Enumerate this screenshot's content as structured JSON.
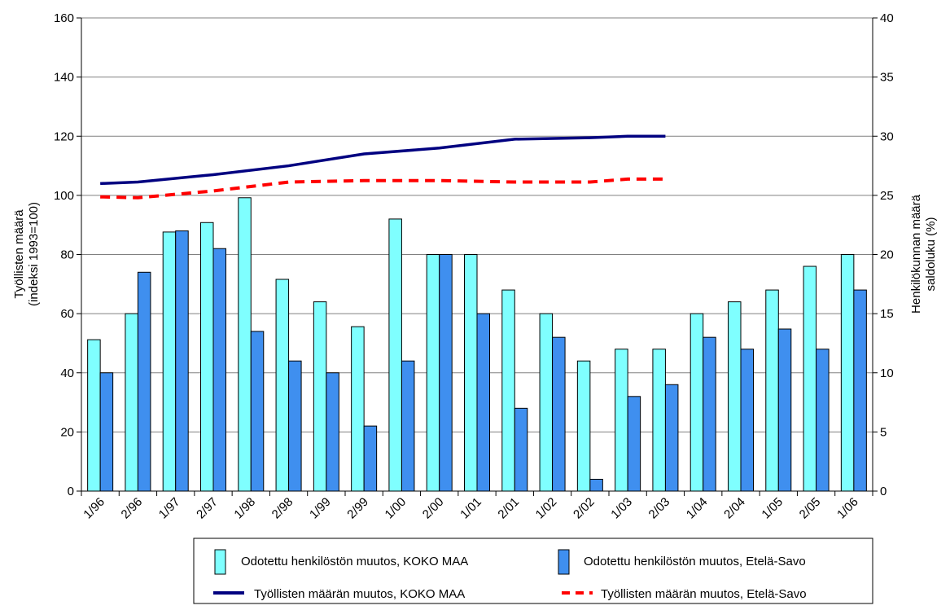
{
  "chart_data": {
    "type": "bar",
    "title": "",
    "categories": [
      "1/96",
      "2/96",
      "1/97",
      "2/97",
      "1/98",
      "2/98",
      "1/99",
      "2/99",
      "1/00",
      "2/00",
      "1/01",
      "2/01",
      "1/02",
      "2/02",
      "1/03",
      "2/03",
      "1/04",
      "2/04",
      "1/05",
      "2/05",
      "1/06"
    ],
    "ylabel_left": [
      "Työllisten määrä",
      "(indeksi 1993=100)"
    ],
    "ylabel_right": [
      "Henkilökunnan määrä",
      "saldoluku (%)"
    ],
    "ylim_left": [
      0,
      160
    ],
    "yticks_left": [
      0,
      20,
      40,
      60,
      80,
      100,
      120,
      140,
      160
    ],
    "ylim_right": [
      0,
      40
    ],
    "yticks_right": [
      0,
      5,
      10,
      15,
      20,
      25,
      30,
      35,
      40
    ],
    "grid": "horizontal",
    "legend_position": "bottom",
    "bar_series": [
      {
        "name": "Odotettu henkilöstön muutos, KOKO MAA",
        "axis": "right",
        "color": "#7fffff",
        "values": [
          12.8,
          15.0,
          21.9,
          22.7,
          24.8,
          17.9,
          16.0,
          13.9,
          23.0,
          20.0,
          20.0,
          17.0,
          15.0,
          11.0,
          12.0,
          12.0,
          15.0,
          16.0,
          17.0,
          19.0,
          20.0
        ]
      },
      {
        "name": "Odotettu henkilöstön muutos, Etelä-Savo",
        "axis": "right",
        "color": "#3f8fef",
        "values": [
          10.0,
          18.5,
          22.0,
          20.5,
          13.5,
          11.0,
          10.0,
          5.5,
          11.0,
          20.0,
          15.0,
          7.0,
          13.0,
          1.0,
          8.0,
          9.0,
          13.0,
          12.0,
          13.7,
          12.0,
          17.0
        ]
      }
    ],
    "line_series": [
      {
        "name": "Työllisten määrän  muutos, KOKO MAA",
        "axis": "left",
        "color": "#000080",
        "style": "solid",
        "values": [
          104,
          104.5,
          107,
          110,
          114,
          116,
          119,
          119.5,
          120,
          120
        ]
      },
      {
        "name": "Työllisten määrän muutos, Etelä-Savo",
        "axis": "left",
        "color": "#ff0000",
        "style": "dashed",
        "values": [
          99.5,
          99.2,
          101.5,
          104.5,
          105,
          105,
          104.5,
          104.5,
          105.5,
          105.5
        ]
      }
    ],
    "line_x_index": [
      0,
      1,
      3,
      5,
      7,
      9,
      11,
      13,
      14,
      15
    ]
  }
}
